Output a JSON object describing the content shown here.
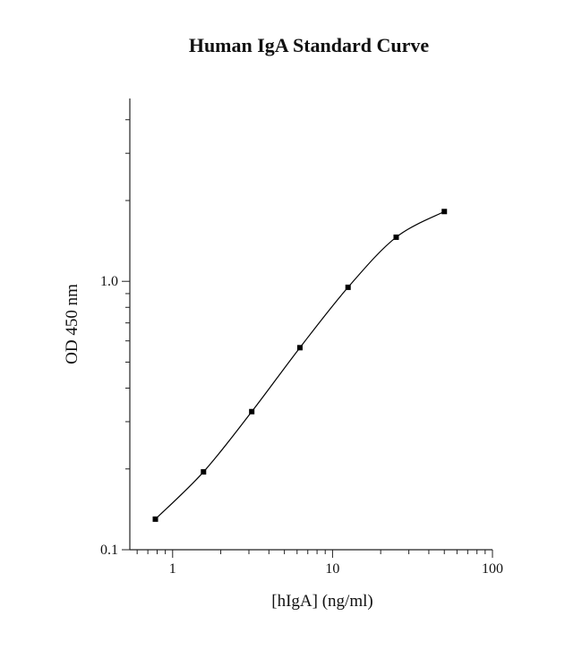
{
  "chart_data": {
    "type": "line",
    "title": "Human IgA Standard Curve",
    "x_label": "[hIgA] (ng/ml)",
    "y_label": "OD 450 nm",
    "x": [
      0.78,
      1.56,
      3.125,
      6.25,
      12.5,
      25,
      50
    ],
    "series": [
      {
        "color": "#000000",
        "values": [
          0.13,
          0.195,
          0.327,
          0.566,
          0.95,
          1.46,
          1.82
        ]
      }
    ],
    "x_log": true,
    "y_log": true,
    "xlim": [
      0.54,
      100
    ],
    "ylim": [
      0.1,
      4.8
    ],
    "xticks": [
      1,
      10,
      100
    ],
    "xminorticks": [
      0.6,
      0.7,
      0.8,
      0.9,
      2,
      3,
      4,
      5,
      6,
      7,
      8,
      9,
      20,
      30,
      40,
      50,
      60,
      70,
      80,
      90
    ],
    "yticks": [
      0.1,
      {
        "value": 1,
        "label": "1.0"
      }
    ],
    "yminorticks": [
      0.2,
      0.3,
      0.4,
      0.5,
      0.6,
      0.7,
      0.8,
      0.9,
      2,
      3,
      4
    ]
  }
}
